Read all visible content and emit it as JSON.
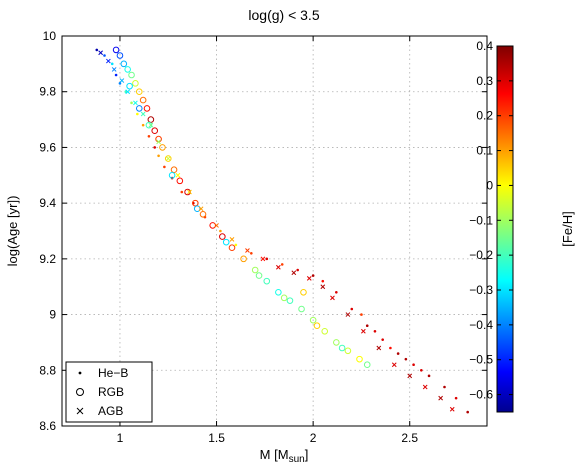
{
  "chart_data": {
    "type": "scatter",
    "title": "log(g) < 3.5",
    "xlabel": "M  [M",
    "xlabel_sub": "sun",
    "xlabel_end": "]",
    "ylabel": "log(Age  [yr])",
    "xlim": [
      0.7,
      2.9
    ],
    "ylim": [
      8.6,
      10.0
    ],
    "xticks": [
      1,
      1.5,
      2,
      2.5
    ],
    "xtick_labels": [
      "1",
      "1.5",
      "2",
      "2.5"
    ],
    "yticks": [
      8.6,
      8.8,
      9.0,
      9.2,
      9.4,
      9.6,
      9.8,
      10.0
    ],
    "ytick_labels": [
      "8.6",
      "8.8",
      "9",
      "9.2",
      "9.4",
      "9.6",
      "9.8",
      "10"
    ],
    "grid": true,
    "legend_position": "bottom-left",
    "legend": [
      {
        "name": "He−B",
        "marker": "dot"
      },
      {
        "name": "RGB",
        "marker": "circle"
      },
      {
        "name": "AGB",
        "marker": "x"
      }
    ],
    "colorbar": {
      "label": "[Fe/H]",
      "range": [
        -0.65,
        0.4
      ],
      "ticks": [
        -0.6,
        -0.5,
        -0.4,
        -0.3,
        -0.2,
        -0.1,
        0,
        0.1,
        0.2,
        0.3,
        0.4
      ],
      "tick_labels": [
        "−0.6",
        "−0.5",
        "−0.4",
        "−0.3",
        "−0.2",
        "−0.1",
        "0",
        "0.1",
        "0.2",
        "0.3",
        "0.4"
      ],
      "colormap": "jet"
    },
    "series": [
      {
        "name": "He−B",
        "marker": "dot",
        "points": [
          [
            0.88,
            9.95,
            -0.62
          ],
          [
            0.92,
            9.93,
            -0.45
          ],
          [
            0.96,
            9.9,
            -0.3
          ],
          [
            0.98,
            9.86,
            -0.5
          ],
          [
            1.0,
            9.83,
            -0.4
          ],
          [
            1.03,
            9.8,
            -0.2
          ],
          [
            1.06,
            9.76,
            -0.1
          ],
          [
            1.09,
            9.72,
            0.0
          ],
          [
            1.12,
            9.68,
            0.1
          ],
          [
            1.15,
            9.64,
            0.2
          ],
          [
            1.18,
            9.6,
            0.3
          ],
          [
            1.2,
            9.57,
            0.1
          ],
          [
            1.23,
            9.53,
            0.2
          ],
          [
            1.27,
            9.49,
            0.3
          ],
          [
            1.32,
            9.44,
            0.2
          ],
          [
            1.38,
            9.4,
            0.3
          ],
          [
            1.44,
            9.35,
            0.2
          ],
          [
            1.52,
            9.3,
            0.1
          ],
          [
            1.6,
            9.25,
            0.0
          ],
          [
            1.68,
            9.22,
            0.2
          ],
          [
            1.76,
            9.2,
            0.3
          ],
          [
            1.84,
            9.18,
            0.2
          ],
          [
            1.92,
            9.16,
            0.3
          ],
          [
            2.0,
            9.14,
            0.35
          ],
          [
            2.05,
            9.12,
            0.25
          ],
          [
            2.12,
            9.08,
            0.3
          ],
          [
            2.2,
            9.02,
            0.3
          ],
          [
            2.28,
            8.96,
            0.35
          ],
          [
            2.36,
            8.91,
            0.3
          ],
          [
            2.44,
            8.86,
            0.35
          ],
          [
            2.52,
            8.82,
            0.3
          ],
          [
            2.6,
            8.78,
            0.35
          ],
          [
            2.68,
            8.74,
            0.35
          ],
          [
            2.74,
            8.7,
            0.3
          ],
          [
            2.8,
            8.65,
            0.35
          ],
          [
            2.25,
            9.0,
            0.2
          ],
          [
            2.32,
            8.94,
            0.3
          ],
          [
            2.4,
            8.88,
            0.25
          ],
          [
            2.48,
            8.84,
            0.35
          ],
          [
            2.56,
            8.8,
            0.3
          ]
        ]
      },
      {
        "name": "RGB",
        "marker": "circle",
        "points": [
          [
            0.98,
            9.95,
            -0.55
          ],
          [
            1.0,
            9.93,
            -0.45
          ],
          [
            1.02,
            9.9,
            -0.35
          ],
          [
            1.04,
            9.88,
            -0.25
          ],
          [
            1.06,
            9.86,
            -0.15
          ],
          [
            1.08,
            9.83,
            -0.05
          ],
          [
            1.1,
            9.8,
            0.05
          ],
          [
            1.12,
            9.77,
            0.15
          ],
          [
            1.14,
            9.74,
            0.25
          ],
          [
            1.16,
            9.7,
            0.35
          ],
          [
            1.18,
            9.66,
            0.3
          ],
          [
            1.2,
            9.63,
            0.2
          ],
          [
            1.22,
            9.6,
            0.1
          ],
          [
            1.25,
            9.56,
            0.05
          ],
          [
            1.28,
            9.52,
            0.15
          ],
          [
            1.31,
            9.48,
            0.25
          ],
          [
            1.35,
            9.44,
            0.3
          ],
          [
            1.39,
            9.4,
            0.2
          ],
          [
            1.43,
            9.36,
            0.15
          ],
          [
            1.48,
            9.32,
            0.25
          ],
          [
            1.53,
            9.28,
            0.3
          ],
          [
            1.58,
            9.24,
            0.2
          ],
          [
            1.64,
            9.2,
            0.1
          ],
          [
            1.7,
            9.16,
            -0.1
          ],
          [
            1.76,
            9.12,
            -0.2
          ],
          [
            1.82,
            9.08,
            -0.25
          ],
          [
            1.88,
            9.05,
            -0.2
          ],
          [
            1.94,
            9.02,
            -0.15
          ],
          [
            2.0,
            8.98,
            -0.1
          ],
          [
            2.06,
            8.94,
            -0.05
          ],
          [
            2.12,
            8.9,
            -0.1
          ],
          [
            2.18,
            8.87,
            -0.05
          ],
          [
            2.24,
            8.84,
            0.0
          ],
          [
            2.28,
            8.82,
            -0.15
          ],
          [
            1.95,
            9.08,
            0.05
          ],
          [
            1.05,
            9.82,
            -0.3
          ],
          [
            1.15,
            9.68,
            -0.2
          ],
          [
            1.27,
            9.5,
            -0.3
          ],
          [
            1.4,
            9.38,
            -0.35
          ],
          [
            1.55,
            9.26,
            -0.3
          ],
          [
            1.72,
            9.14,
            -0.15
          ],
          [
            1.85,
            9.06,
            -0.1
          ],
          [
            2.02,
            8.96,
            0.05
          ],
          [
            2.15,
            8.88,
            -0.2
          ],
          [
            1.1,
            9.74,
            -0.4
          ]
        ]
      },
      {
        "name": "AGB",
        "marker": "x",
        "points": [
          [
            0.9,
            9.94,
            -0.6
          ],
          [
            0.94,
            9.91,
            -0.5
          ],
          [
            0.97,
            9.88,
            -0.4
          ],
          [
            1.01,
            9.84,
            -0.35
          ],
          [
            1.04,
            9.8,
            -0.3
          ],
          [
            1.08,
            9.76,
            -0.25
          ],
          [
            1.12,
            9.72,
            -0.2
          ],
          [
            1.16,
            9.68,
            -0.15
          ],
          [
            1.2,
            9.62,
            -0.1
          ],
          [
            1.25,
            9.56,
            -0.05
          ],
          [
            1.3,
            9.5,
            0.0
          ],
          [
            1.36,
            9.44,
            0.05
          ],
          [
            1.42,
            9.38,
            0.1
          ],
          [
            1.5,
            9.32,
            0.15
          ],
          [
            1.58,
            9.27,
            0.1
          ],
          [
            1.66,
            9.23,
            0.2
          ],
          [
            1.74,
            9.2,
            0.25
          ],
          [
            1.82,
            9.17,
            0.3
          ],
          [
            1.9,
            9.15,
            0.35
          ],
          [
            1.98,
            9.13,
            0.3
          ],
          [
            2.05,
            9.1,
            0.35
          ],
          [
            2.1,
            9.06,
            0.3
          ],
          [
            2.18,
            9.0,
            0.35
          ],
          [
            2.26,
            8.94,
            0.3
          ],
          [
            2.34,
            8.88,
            0.35
          ],
          [
            2.42,
            8.82,
            0.3
          ],
          [
            2.5,
            8.78,
            0.35
          ],
          [
            2.58,
            8.74,
            0.3
          ],
          [
            2.66,
            8.7,
            0.35
          ],
          [
            2.72,
            8.66,
            0.3
          ]
        ]
      }
    ]
  }
}
